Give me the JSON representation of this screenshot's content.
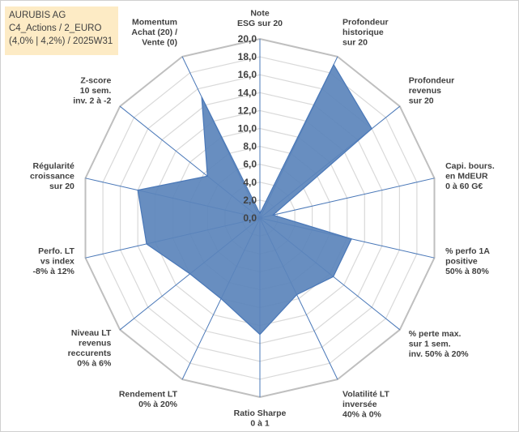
{
  "info_box": {
    "line1": "AURUBIS AG",
    "line2": "C4_Actions / 2_EURO",
    "line3": "(4,0% | 4,2%) / 2025W31"
  },
  "colors": {
    "fill": "#5b84bb",
    "stroke": "#4a78b8",
    "axis": "#4a78b8",
    "grid": "#d9d9d9",
    "grid_outer": "#bfbfbf",
    "info_bg": "#fdebc5"
  },
  "chart_data": {
    "type": "radar",
    "rlim": [
      0,
      20
    ],
    "ticks": [
      "0,0",
      "2,0",
      "4,0",
      "6,0",
      "8,0",
      "10,0",
      "12,0",
      "14,0",
      "16,0",
      "18,0",
      "20,0"
    ],
    "axes": [
      {
        "label": [
          "Note",
          "ESG sur 20"
        ],
        "value": 0.5
      },
      {
        "label": [
          "Profondeur",
          "historique",
          "sur 20"
        ],
        "value": 19
      },
      {
        "label": [
          "Profondeur",
          "revenus",
          "sur 20"
        ],
        "value": 16
      },
      {
        "label": [
          "Capi. bours.",
          "en MdEUR",
          "0 à 60 G€"
        ],
        "value": 1.5
      },
      {
        "label": [
          "% perfo 1A",
          "positive",
          "50% à 80%"
        ],
        "value": 10.5
      },
      {
        "label": [
          "% perte max.",
          "sur 1 sem.",
          "inv. 50% à 20%"
        ],
        "value": 10.5
      },
      {
        "label": [
          "Volatilité LT",
          "inversée",
          "40% à 0%"
        ],
        "value": 9.5
      },
      {
        "label": [
          "Ratio Sharpe",
          "0 à 1"
        ],
        "value": 13
      },
      {
        "label": [
          "Rendement LT",
          "0% à 20%"
        ],
        "value": 10
      },
      {
        "label": [
          "Niveau LT",
          "revenus",
          "reccurents",
          "0% à 6%"
        ],
        "value": 10
      },
      {
        "label": [
          "Perfo. LT",
          "vs index",
          "-8% à 12%"
        ],
        "value": 13
      },
      {
        "label": [
          "Régularité",
          "croissance",
          "sur 20"
        ],
        "value": 14
      },
      {
        "label": [
          "Z-score",
          "10 sem.",
          "inv. 2 à -2"
        ],
        "value": 7.5
      },
      {
        "label": [
          "Momentum",
          "Achat (20) /",
          "Vente (0)"
        ],
        "value": 15
      }
    ]
  }
}
